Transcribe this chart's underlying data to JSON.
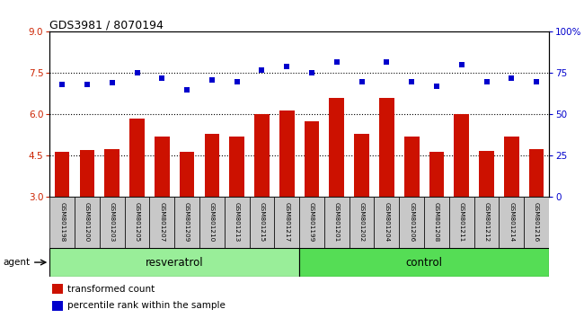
{
  "title": "GDS3981 / 8070194",
  "samples": [
    "GSM801198",
    "GSM801200",
    "GSM801203",
    "GSM801205",
    "GSM801207",
    "GSM801209",
    "GSM801210",
    "GSM801213",
    "GSM801215",
    "GSM801217",
    "GSM801199",
    "GSM801201",
    "GSM801202",
    "GSM801204",
    "GSM801206",
    "GSM801208",
    "GSM801211",
    "GSM801212",
    "GSM801214",
    "GSM801216"
  ],
  "bar_values": [
    4.65,
    4.72,
    4.75,
    5.85,
    5.2,
    4.65,
    5.3,
    5.2,
    6.02,
    6.15,
    5.75,
    6.6,
    5.3,
    6.6,
    5.2,
    4.65,
    6.02,
    4.68,
    5.2,
    4.75
  ],
  "dot_values": [
    68,
    68,
    69,
    75,
    72,
    65,
    71,
    70,
    77,
    79,
    75,
    82,
    70,
    82,
    70,
    67,
    80,
    70,
    72,
    70
  ],
  "bar_color": "#cc1100",
  "dot_color": "#0000cc",
  "ylim_left": [
    3,
    9
  ],
  "ylim_right": [
    0,
    100
  ],
  "yticks_left": [
    3,
    4.5,
    6,
    7.5,
    9
  ],
  "yticks_right": [
    0,
    25,
    50,
    75,
    100
  ],
  "ytick_labels_right": [
    "0",
    "25",
    "50",
    "75",
    "100%"
  ],
  "hlines": [
    4.5,
    6.0,
    7.5
  ],
  "group1_label": "resveratrol",
  "group2_label": "control",
  "group1_count": 10,
  "group2_count": 10,
  "agent_label": "agent",
  "legend_bar": "transformed count",
  "legend_dot": "percentile rank within the sample",
  "group1_color": "#99ee99",
  "group2_color": "#55dd55",
  "xlabel_area_color": "#c8c8c8",
  "bar_bottom": 3
}
